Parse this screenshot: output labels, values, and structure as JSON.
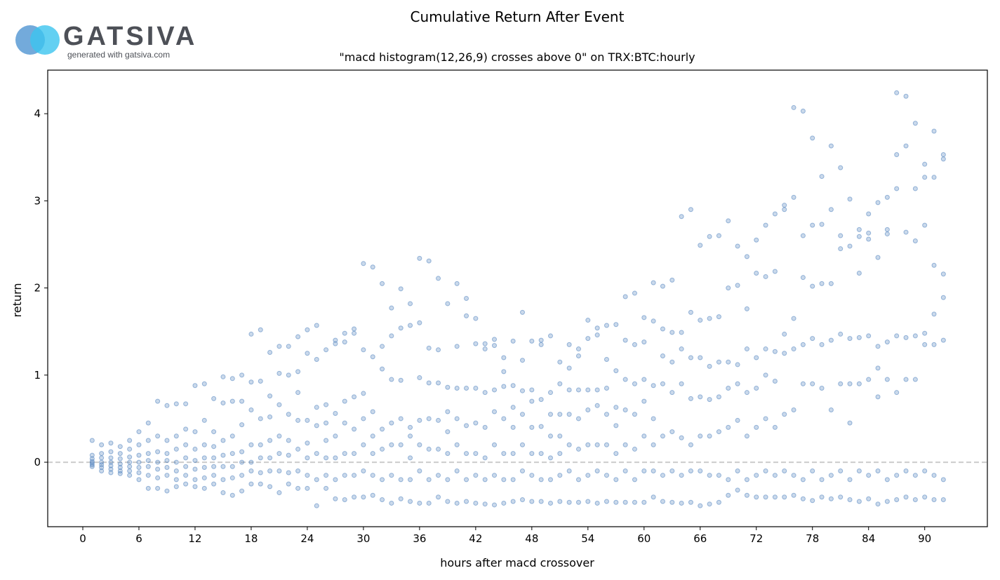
{
  "logo": {
    "name": "GATSIVA",
    "tagline": "generated with gatsiva.com"
  },
  "chart_data": {
    "type": "scatter",
    "title": "Cumulative Return After Event",
    "subtitle": "\"macd histogram(12,26,9) crosses above 0\" on TRX:BTC:hourly",
    "xlabel": "hours after macd crossover",
    "ylabel": "return",
    "xlim": [
      -3.75,
      96.7
    ],
    "ylim": [
      -0.74,
      4.5
    ],
    "xticks": [
      0,
      6,
      12,
      18,
      24,
      30,
      36,
      42,
      48,
      54,
      60,
      66,
      72,
      78,
      84,
      90
    ],
    "yticks": [
      0,
      1,
      2,
      3,
      4
    ],
    "grid": false,
    "reference_line": {
      "y": 0,
      "style": "dashed",
      "color": "#cccccc"
    },
    "point_color": "#4f81bd",
    "points_by_hour": {
      "1": [
        0.25,
        0.08,
        0.04,
        0.01,
        -0.01,
        -0.03,
        -0.05
      ],
      "2": [
        0.2,
        0.1,
        0.05,
        0.0,
        -0.03,
        -0.06,
        -0.1
      ],
      "3": [
        0.22,
        0.12,
        0.05,
        0.0,
        -0.04,
        -0.08,
        -0.12
      ],
      "4": [
        0.18,
        0.1,
        0.04,
        -0.02,
        -0.06,
        -0.1,
        -0.13
      ],
      "5": [
        0.25,
        0.15,
        0.06,
        0.0,
        -0.05,
        -0.1,
        -0.15
      ],
      "6": [
        0.35,
        0.2,
        0.08,
        0.0,
        -0.06,
        -0.12,
        -0.2
      ],
      "7": [
        0.45,
        0.25,
        0.1,
        0.02,
        -0.05,
        -0.15,
        -0.3
      ],
      "8": [
        0.7,
        0.3,
        0.12,
        0.0,
        -0.08,
        -0.18,
        -0.3
      ],
      "9": [
        0.65,
        0.25,
        0.1,
        0.02,
        -0.06,
        -0.15,
        -0.33
      ],
      "10": [
        0.67,
        0.3,
        0.15,
        0.0,
        -0.1,
        -0.2,
        -0.28
      ],
      "11": [
        0.67,
        0.38,
        0.2,
        0.05,
        -0.05,
        -0.15,
        -0.25
      ],
      "12": [
        0.88,
        0.35,
        0.15,
        0.02,
        -0.08,
        -0.2,
        -0.28
      ],
      "13": [
        0.9,
        0.48,
        0.2,
        0.05,
        -0.06,
        -0.18,
        -0.3
      ],
      "14": [
        0.73,
        0.35,
        0.18,
        0.05,
        -0.05,
        -0.15,
        -0.25
      ],
      "15": [
        0.98,
        0.68,
        0.25,
        0.08,
        -0.05,
        -0.2,
        -0.35
      ],
      "16": [
        0.96,
        0.7,
        0.3,
        0.1,
        -0.05,
        -0.18,
        -0.38
      ],
      "17": [
        1.0,
        0.7,
        0.43,
        0.12,
        0.0,
        -0.15,
        -0.33
      ],
      "18": [
        1.47,
        0.92,
        0.6,
        0.2,
        0.0,
        -0.1,
        -0.25
      ],
      "19": [
        1.52,
        0.93,
        0.5,
        0.2,
        0.05,
        -0.12,
        -0.25
      ],
      "20": [
        1.26,
        0.76,
        0.52,
        0.25,
        0.05,
        -0.1,
        -0.28
      ],
      "21": [
        1.33,
        1.02,
        0.66,
        0.3,
        0.1,
        -0.1,
        -0.35
      ],
      "22": [
        1.33,
        1.0,
        0.55,
        0.25,
        0.08,
        -0.12,
        -0.25
      ],
      "23": [
        1.44,
        1.04,
        0.8,
        0.48,
        0.15,
        -0.1,
        -0.3
      ],
      "24": [
        1.52,
        1.25,
        0.48,
        0.22,
        0.05,
        -0.15,
        -0.3
      ],
      "25": [
        1.57,
        1.18,
        0.63,
        0.42,
        0.1,
        -0.2,
        -0.5
      ],
      "26": [
        1.29,
        0.66,
        0.45,
        0.25,
        0.05,
        -0.15,
        -0.3
      ],
      "27": [
        1.4,
        1.36,
        0.56,
        0.3,
        0.05,
        -0.2,
        -0.42
      ],
      "28": [
        1.48,
        1.38,
        0.7,
        0.45,
        0.1,
        -0.15,
        -0.43
      ],
      "29": [
        1.53,
        1.48,
        0.75,
        0.38,
        0.1,
        -0.15,
        -0.4
      ],
      "30": [
        2.28,
        1.29,
        0.79,
        0.5,
        0.2,
        -0.1,
        -0.4
      ],
      "31": [
        2.24,
        1.21,
        0.58,
        0.3,
        0.1,
        -0.15,
        -0.38
      ],
      "32": [
        2.05,
        1.33,
        1.07,
        0.38,
        0.15,
        -0.2,
        -0.43
      ],
      "33": [
        1.77,
        1.45,
        0.95,
        0.45,
        0.2,
        -0.15,
        -0.47
      ],
      "34": [
        1.99,
        1.54,
        0.94,
        0.5,
        0.2,
        -0.2,
        -0.42
      ],
      "35": [
        1.82,
        1.57,
        0.4,
        0.3,
        0.05,
        -0.2,
        -0.45
      ],
      "36": [
        2.34,
        1.6,
        0.97,
        0.48,
        0.2,
        -0.1,
        -0.47
      ],
      "37": [
        2.31,
        1.31,
        0.91,
        0.5,
        0.15,
        -0.2,
        -0.47
      ],
      "38": [
        2.11,
        1.29,
        0.91,
        0.48,
        0.15,
        -0.15,
        -0.4
      ],
      "39": [
        1.82,
        0.86,
        0.58,
        0.35,
        0.1,
        -0.2,
        -0.45
      ],
      "40": [
        2.05,
        1.33,
        0.85,
        0.5,
        0.2,
        -0.1,
        -0.47
      ],
      "41": [
        1.88,
        1.68,
        0.85,
        0.42,
        0.1,
        -0.2,
        -0.45
      ],
      "42": [
        1.65,
        1.36,
        0.85,
        0.45,
        0.1,
        -0.15,
        -0.47
      ],
      "43": [
        1.36,
        1.3,
        0.8,
        0.4,
        0.05,
        -0.2,
        -0.48
      ],
      "44": [
        1.41,
        1.34,
        0.83,
        0.58,
        0.2,
        -0.15,
        -0.49
      ],
      "45": [
        1.2,
        1.04,
        0.87,
        0.5,
        0.1,
        -0.2,
        -0.47
      ],
      "46": [
        1.39,
        0.88,
        0.63,
        0.4,
        0.1,
        -0.2,
        -0.45
      ],
      "47": [
        1.72,
        1.17,
        0.82,
        0.55,
        0.2,
        -0.1,
        -0.43
      ],
      "48": [
        1.39,
        0.83,
        0.7,
        0.4,
        0.1,
        -0.15,
        -0.45
      ],
      "49": [
        1.4,
        1.35,
        0.72,
        0.41,
        0.1,
        -0.2,
        -0.45
      ],
      "50": [
        1.45,
        0.8,
        0.55,
        0.3,
        0.05,
        -0.2,
        -0.47
      ],
      "51": [
        1.15,
        0.9,
        0.55,
        0.3,
        0.1,
        -0.15,
        -0.45
      ],
      "52": [
        1.35,
        1.08,
        0.83,
        0.55,
        0.2,
        -0.1,
        -0.46
      ],
      "53": [
        1.3,
        1.22,
        0.83,
        0.5,
        0.15,
        -0.2,
        -0.46
      ],
      "54": [
        1.63,
        1.42,
        0.83,
        0.6,
        0.2,
        -0.15,
        -0.45
      ],
      "55": [
        1.54,
        1.46,
        0.83,
        0.65,
        0.2,
        -0.1,
        -0.47
      ],
      "56": [
        1.57,
        1.18,
        0.85,
        0.55,
        0.2,
        -0.15,
        -0.45
      ],
      "57": [
        1.58,
        1.05,
        0.63,
        0.42,
        0.1,
        -0.2,
        -0.46
      ],
      "58": [
        1.9,
        1.4,
        0.95,
        0.6,
        0.2,
        -0.1,
        -0.46
      ],
      "59": [
        1.94,
        1.35,
        0.9,
        0.55,
        0.15,
        -0.2,
        -0.46
      ],
      "60": [
        1.66,
        1.38,
        0.95,
        0.7,
        0.3,
        -0.1,
        -0.46
      ],
      "61": [
        2.06,
        1.62,
        0.88,
        0.5,
        0.2,
        -0.1,
        -0.4
      ],
      "62": [
        2.02,
        1.53,
        1.22,
        0.9,
        0.3,
        -0.15,
        -0.45
      ],
      "63": [
        2.09,
        1.49,
        1.15,
        0.8,
        0.35,
        -0.1,
        -0.46
      ],
      "64": [
        2.82,
        1.49,
        1.3,
        0.9,
        0.28,
        -0.15,
        -0.47
      ],
      "65": [
        2.9,
        1.72,
        1.2,
        0.73,
        0.2,
        -0.1,
        -0.46
      ],
      "66": [
        2.49,
        1.63,
        1.2,
        0.75,
        0.3,
        -0.1,
        -0.5
      ],
      "67": [
        2.59,
        1.65,
        1.1,
        0.72,
        0.3,
        -0.15,
        -0.48
      ],
      "68": [
        2.6,
        1.67,
        1.15,
        0.75,
        0.35,
        -0.15,
        -0.46
      ],
      "69": [
        2.77,
        2.0,
        1.15,
        0.85,
        0.4,
        -0.2,
        -0.38
      ],
      "70": [
        2.48,
        2.03,
        1.12,
        0.9,
        0.48,
        -0.1,
        -0.32
      ],
      "71": [
        2.36,
        1.76,
        1.3,
        0.8,
        0.3,
        -0.2,
        -0.38
      ],
      "72": [
        2.55,
        2.17,
        1.2,
        0.85,
        0.4,
        -0.15,
        -0.4
      ],
      "73": [
        2.72,
        2.13,
        1.3,
        1.0,
        0.5,
        -0.1,
        -0.4
      ],
      "74": [
        2.85,
        2.19,
        1.27,
        0.93,
        0.4,
        -0.15,
        -0.4
      ],
      "75": [
        2.95,
        2.9,
        1.47,
        1.25,
        0.55,
        -0.1,
        -0.4
      ],
      "76": [
        4.07,
        3.04,
        1.65,
        1.3,
        0.6,
        -0.15,
        -0.38
      ],
      "77": [
        4.03,
        2.6,
        2.12,
        1.35,
        0.9,
        -0.2,
        -0.42
      ],
      "78": [
        3.72,
        2.72,
        2.02,
        1.42,
        0.9,
        -0.1,
        -0.44
      ],
      "79": [
        3.28,
        2.73,
        2.05,
        1.35,
        0.85,
        -0.2,
        -0.4
      ],
      "80": [
        3.63,
        2.9,
        2.05,
        1.4,
        0.6,
        -0.15,
        -0.42
      ],
      "81": [
        3.38,
        2.6,
        2.45,
        1.47,
        0.9,
        -0.1,
        -0.4
      ],
      "82": [
        3.02,
        2.48,
        1.42,
        0.9,
        0.45,
        -0.2,
        -0.43
      ],
      "83": [
        2.67,
        2.59,
        2.17,
        1.43,
        0.9,
        -0.1,
        -0.45
      ],
      "84": [
        2.85,
        2.63,
        2.56,
        1.45,
        0.95,
        -0.15,
        -0.42
      ],
      "85": [
        2.98,
        2.35,
        1.33,
        1.08,
        0.75,
        -0.1,
        -0.48
      ],
      "86": [
        3.04,
        2.67,
        2.62,
        1.38,
        0.95,
        -0.2,
        -0.45
      ],
      "87": [
        4.24,
        3.53,
        3.14,
        1.45,
        0.8,
        -0.15,
        -0.43
      ],
      "88": [
        4.2,
        3.63,
        2.64,
        1.43,
        0.95,
        -0.1,
        -0.4
      ],
      "89": [
        3.89,
        3.14,
        2.54,
        1.45,
        0.95,
        -0.15,
        -0.43
      ],
      "90": [
        3.42,
        3.27,
        2.72,
        1.48,
        1.35,
        -0.1,
        -0.4
      ],
      "91": [
        3.8,
        3.27,
        2.26,
        1.7,
        1.35,
        -0.15,
        -0.43
      ],
      "92": [
        3.53,
        3.48,
        2.16,
        1.89,
        1.4,
        -0.2,
        -0.43
      ]
    }
  }
}
